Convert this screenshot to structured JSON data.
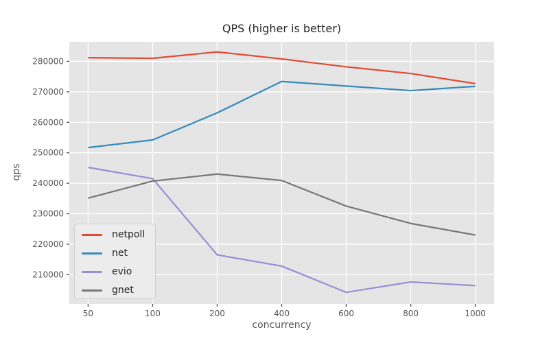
{
  "chart_data": {
    "type": "line",
    "title": "QPS (higher is better)",
    "xlabel": "concurrency",
    "ylabel": "qps",
    "categories": [
      50,
      100,
      200,
      400,
      600,
      800,
      1000
    ],
    "x_scale": "categorical-equal-spacing",
    "y_ticks": [
      210000,
      220000,
      230000,
      240000,
      250000,
      260000,
      270000,
      280000
    ],
    "ylim": [
      200400,
      286400
    ],
    "grid": true,
    "legend_position": "lower left",
    "legend_entries": [
      "netpoll",
      "net",
      "evio",
      "gnet"
    ],
    "series": [
      {
        "name": "netpoll",
        "color": "#e24a33",
        "values": [
          281200,
          281000,
          283100,
          280800,
          278200,
          276000,
          272700
        ]
      },
      {
        "name": "net",
        "color": "#348abd",
        "values": [
          251700,
          254200,
          263100,
          273400,
          271900,
          270400,
          271800
        ]
      },
      {
        "name": "evio",
        "color": "#988ed5",
        "values": [
          245200,
          241500,
          216500,
          212800,
          204200,
          207600,
          206400
        ]
      },
      {
        "name": "gnet",
        "color": "#777777",
        "values": [
          235100,
          240700,
          243000,
          240900,
          232500,
          226800,
          223000
        ]
      }
    ],
    "colors": {
      "figure_bg": "#ffffff",
      "plot_bg": "#e5e5e5",
      "grid": "#ffffff",
      "tick": "#555555",
      "title_text": "#262626",
      "legend_bg": "#ececec",
      "legend_border": "#cfcfcf"
    }
  }
}
